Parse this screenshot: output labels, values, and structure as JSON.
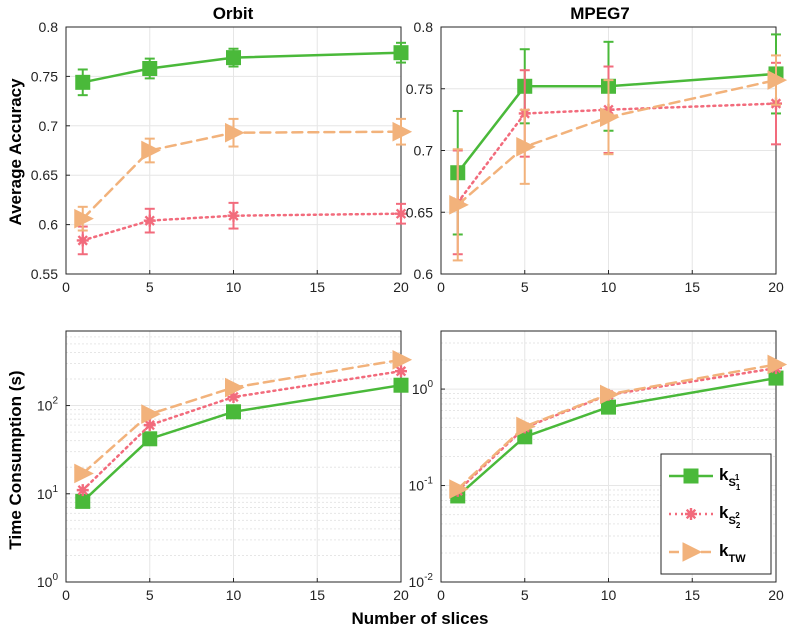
{
  "figure": {
    "xlabel": "Number of slices",
    "ylabel_top": "Average Accuracy",
    "ylabel_bottom": "Time Consumption (s)"
  },
  "legend": {
    "entries": [
      {
        "base": "k",
        "sub": "S",
        "subsub": "1",
        "sup": "1",
        "text": "k_{S_1^1}"
      },
      {
        "base": "k",
        "sub": "S",
        "subsub": "2",
        "sup": "2",
        "text": "k_{S_2^2}"
      },
      {
        "base": "k",
        "sub": "TW",
        "subsub": "",
        "sup": "",
        "text": "k_{TW}"
      }
    ],
    "placement": "bottom-right of MPEG7 time panel"
  },
  "colors": {
    "kS1": "#4ab93a",
    "kS2": "#f26b7c",
    "kTW": "#f2b27b",
    "grid": "#e6e6e6"
  },
  "chart_data": [
    {
      "type": "line",
      "title": "Orbit",
      "xlabel": "",
      "ylabel": "Average Accuracy",
      "x": [
        1,
        5,
        10,
        20
      ],
      "xlim": [
        0,
        20
      ],
      "xticks": [
        "0",
        "5",
        "10",
        "15",
        "20"
      ],
      "ylim": [
        0.55,
        0.8
      ],
      "yticks": [
        "0.55",
        "0.6",
        "0.65",
        "0.7",
        "0.75",
        "0.8"
      ],
      "yscale": "linear",
      "grid": true,
      "series": [
        {
          "name": "kS1",
          "values": [
            0.744,
            0.758,
            0.769,
            0.774
          ],
          "errors": [
            0.013,
            0.01,
            0.009,
            0.01
          ]
        },
        {
          "name": "kS2",
          "values": [
            0.584,
            0.604,
            0.609,
            0.611
          ],
          "errors": [
            0.014,
            0.012,
            0.013,
            0.01
          ]
        },
        {
          "name": "kTW",
          "values": [
            0.606,
            0.675,
            0.693,
            0.694
          ],
          "errors": [
            0.012,
            0.012,
            0.014,
            0.013
          ]
        }
      ]
    },
    {
      "type": "line",
      "title": "MPEG7",
      "xlabel": "",
      "ylabel": "",
      "x": [
        1,
        5,
        10,
        20
      ],
      "xlim": [
        0,
        20
      ],
      "xticks": [
        "0",
        "5",
        "10",
        "15",
        "20"
      ],
      "ylim": [
        0.6,
        0.8
      ],
      "yticks": [
        "0.6",
        "0.65",
        "0.7",
        "0.75",
        "0.8"
      ],
      "yscale": "linear",
      "grid": true,
      "series": [
        {
          "name": "kS1",
          "values": [
            0.682,
            0.752,
            0.752,
            0.762
          ],
          "errors": [
            0.05,
            0.03,
            0.036,
            0.032
          ]
        },
        {
          "name": "kS2",
          "values": [
            0.658,
            0.73,
            0.733,
            0.738
          ],
          "errors": [
            0.042,
            0.035,
            0.035,
            0.033
          ]
        },
        {
          "name": "kTW",
          "values": [
            0.656,
            0.703,
            0.727,
            0.757
          ],
          "errors": [
            0.045,
            0.03,
            0.03,
            0.02
          ]
        }
      ]
    },
    {
      "type": "line",
      "title": "",
      "xlabel": "Number of slices",
      "ylabel": "Time Consumption (s)",
      "x": [
        1,
        5,
        10,
        20
      ],
      "xlim": [
        0,
        20
      ],
      "xticks": [
        "0",
        "5",
        "10",
        "15",
        "20"
      ],
      "ylim": [
        1,
        700
      ],
      "yscale": "log",
      "yticks": [
        {
          "value": 1,
          "base": "10",
          "exp": "0"
        },
        {
          "value": 10,
          "base": "10",
          "exp": "1"
        },
        {
          "value": 100,
          "base": "10",
          "exp": "2"
        }
      ],
      "grid": true,
      "series": [
        {
          "name": "kS1",
          "values": [
            8.2,
            42,
            85,
            170
          ]
        },
        {
          "name": "kS2",
          "values": [
            11,
            60,
            125,
            245
          ]
        },
        {
          "name": "kTW",
          "values": [
            17,
            80,
            160,
            330
          ]
        }
      ]
    },
    {
      "type": "line",
      "title": "",
      "xlabel": "",
      "ylabel": "",
      "x": [
        1,
        5,
        10,
        20
      ],
      "xlim": [
        0,
        20
      ],
      "xticks": [
        "0",
        "5",
        "10",
        "15",
        "20"
      ],
      "ylim": [
        0.01,
        4
      ],
      "yscale": "log",
      "yticks": [
        {
          "value": 0.01,
          "base": "10",
          "exp": "-2"
        },
        {
          "value": 0.1,
          "base": "10",
          "exp": "-1"
        },
        {
          "value": 1,
          "base": "10",
          "exp": "0"
        }
      ],
      "grid": true,
      "series": [
        {
          "name": "kS1",
          "values": [
            0.078,
            0.32,
            0.65,
            1.3
          ]
        },
        {
          "name": "kS2",
          "values": [
            0.088,
            0.4,
            0.87,
            1.65
          ]
        },
        {
          "name": "kTW",
          "values": [
            0.092,
            0.41,
            0.88,
            1.8
          ]
        }
      ]
    }
  ]
}
